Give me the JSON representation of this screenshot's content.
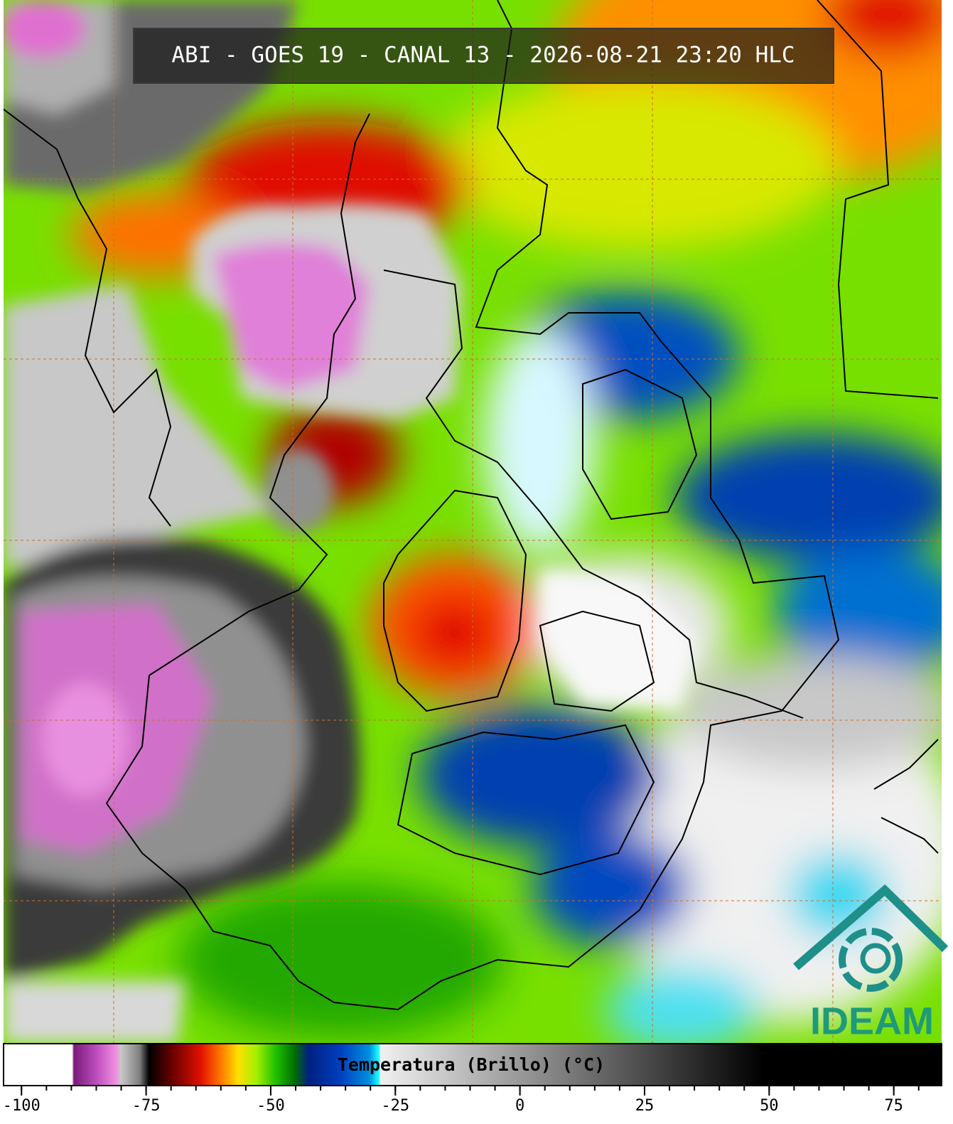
{
  "header": {
    "title": "ABI - GOES 19 - CANAL 13 - 2026-08-21 23:20 HLC"
  },
  "colorbar": {
    "label": "Temperatura (Brillo) (°C)",
    "lim": [
      -103.6,
      84.6
    ],
    "ticks": [
      -100,
      -75,
      -50,
      -25,
      0,
      25,
      50,
      75
    ]
  },
  "logo": {
    "text": "IDEAM"
  }
}
